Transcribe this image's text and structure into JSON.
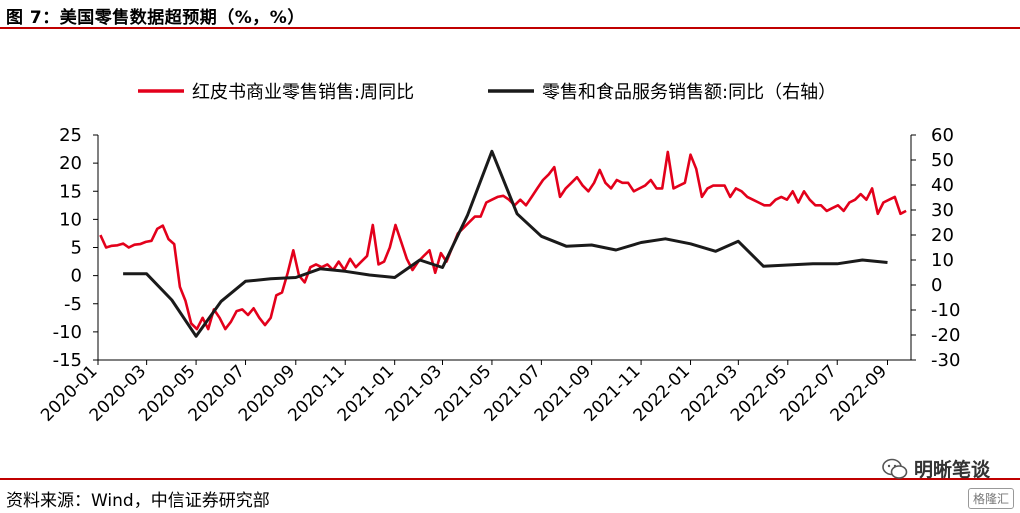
{
  "figure": {
    "title": "图 7：美国零售数据超预期（%，%）",
    "source": "资料来源：Wind，中信证券研究部",
    "watermark": "明晰笔谈",
    "watermark_small": "格隆汇",
    "accent_color": "#c00000"
  },
  "chart_data": {
    "type": "line",
    "legend_position": "top",
    "grid": false,
    "series": [
      {
        "name": "红皮书商业零售销售:周同比",
        "axis": "left",
        "color": "#e3001b",
        "points": [
          [
            "2020-01-04",
            7.2
          ],
          [
            "2020-01-11",
            5.0
          ],
          [
            "2020-01-18",
            5.3
          ],
          [
            "2020-01-25",
            5.4
          ],
          [
            "2020-02-01",
            5.7
          ],
          [
            "2020-02-08",
            5.0
          ],
          [
            "2020-02-15",
            5.5
          ],
          [
            "2020-02-22",
            5.6
          ],
          [
            "2020-02-29",
            6.0
          ],
          [
            "2020-03-07",
            6.2
          ],
          [
            "2020-03-14",
            8.3
          ],
          [
            "2020-03-21",
            8.9
          ],
          [
            "2020-03-28",
            6.5
          ],
          [
            "2020-04-04",
            5.6
          ],
          [
            "2020-04-11",
            -2.0
          ],
          [
            "2020-04-18",
            -4.5
          ],
          [
            "2020-04-25",
            -8.5
          ],
          [
            "2020-05-02",
            -9.5
          ],
          [
            "2020-05-09",
            -7.5
          ],
          [
            "2020-05-16",
            -9.5
          ],
          [
            "2020-05-23",
            -6.0
          ],
          [
            "2020-05-30",
            -7.5
          ],
          [
            "2020-06-06",
            -9.5
          ],
          [
            "2020-06-13",
            -8.2
          ],
          [
            "2020-06-20",
            -6.3
          ],
          [
            "2020-06-27",
            -6.0
          ],
          [
            "2020-07-04",
            -7.0
          ],
          [
            "2020-07-11",
            -5.8
          ],
          [
            "2020-07-18",
            -7.5
          ],
          [
            "2020-07-25",
            -8.8
          ],
          [
            "2020-08-01",
            -7.5
          ],
          [
            "2020-08-08",
            -3.5
          ],
          [
            "2020-08-15",
            -3.0
          ],
          [
            "2020-08-22",
            0.5
          ],
          [
            "2020-08-29",
            4.5
          ],
          [
            "2020-09-05",
            0.0
          ],
          [
            "2020-09-12",
            -1.2
          ],
          [
            "2020-09-19",
            1.5
          ],
          [
            "2020-09-26",
            2.0
          ],
          [
            "2020-10-03",
            1.5
          ],
          [
            "2020-10-10",
            2.0
          ],
          [
            "2020-10-17",
            1.0
          ],
          [
            "2020-10-24",
            2.5
          ],
          [
            "2020-10-31",
            1.0
          ],
          [
            "2020-11-07",
            3.0
          ],
          [
            "2020-11-14",
            1.5
          ],
          [
            "2020-11-21",
            2.5
          ],
          [
            "2020-11-28",
            3.5
          ],
          [
            "2020-12-05",
            9.0
          ],
          [
            "2020-12-12",
            2.0
          ],
          [
            "2020-12-19",
            2.5
          ],
          [
            "2020-12-26",
            5.0
          ],
          [
            "2021-01-02",
            9.0
          ],
          [
            "2021-01-09",
            6.0
          ],
          [
            "2021-01-16",
            3.0
          ],
          [
            "2021-01-23",
            1.0
          ],
          [
            "2021-01-30",
            2.5
          ],
          [
            "2021-02-06",
            3.5
          ],
          [
            "2021-02-13",
            4.5
          ],
          [
            "2021-02-20",
            0.5
          ],
          [
            "2021-02-27",
            4.0
          ],
          [
            "2021-03-06",
            2.5
          ],
          [
            "2021-03-13",
            5.0
          ],
          [
            "2021-03-20",
            7.5
          ],
          [
            "2021-03-27",
            8.5
          ],
          [
            "2021-04-03",
            9.5
          ],
          [
            "2021-04-10",
            10.5
          ],
          [
            "2021-04-17",
            10.5
          ],
          [
            "2021-04-24",
            13.0
          ],
          [
            "2021-05-01",
            13.5
          ],
          [
            "2021-05-08",
            14.0
          ],
          [
            "2021-05-15",
            14.2
          ],
          [
            "2021-05-22",
            13.5
          ],
          [
            "2021-05-29",
            12.5
          ],
          [
            "2021-06-05",
            13.5
          ],
          [
            "2021-06-12",
            12.5
          ],
          [
            "2021-06-19",
            14.0
          ],
          [
            "2021-06-26",
            15.5
          ],
          [
            "2021-07-03",
            17.0
          ],
          [
            "2021-07-10",
            18.0
          ],
          [
            "2021-07-17",
            19.3
          ],
          [
            "2021-07-24",
            14.0
          ],
          [
            "2021-07-31",
            15.5
          ],
          [
            "2021-08-07",
            16.5
          ],
          [
            "2021-08-14",
            17.5
          ],
          [
            "2021-08-21",
            16.0
          ],
          [
            "2021-08-28",
            15.0
          ],
          [
            "2021-09-04",
            16.5
          ],
          [
            "2021-09-11",
            18.8
          ],
          [
            "2021-09-18",
            16.5
          ],
          [
            "2021-09-25",
            15.5
          ],
          [
            "2021-10-02",
            17.0
          ],
          [
            "2021-10-09",
            16.5
          ],
          [
            "2021-10-16",
            16.5
          ],
          [
            "2021-10-23",
            15.0
          ],
          [
            "2021-10-30",
            15.5
          ],
          [
            "2021-11-06",
            16.0
          ],
          [
            "2021-11-13",
            17.0
          ],
          [
            "2021-11-20",
            15.5
          ],
          [
            "2021-11-27",
            15.5
          ],
          [
            "2021-12-04",
            22.0
          ],
          [
            "2021-12-11",
            15.5
          ],
          [
            "2021-12-18",
            16.0
          ],
          [
            "2021-12-25",
            16.5
          ],
          [
            "2022-01-01",
            21.5
          ],
          [
            "2022-01-08",
            19.0
          ],
          [
            "2022-01-15",
            14.0
          ],
          [
            "2022-01-22",
            15.5
          ],
          [
            "2022-01-29",
            16.0
          ],
          [
            "2022-02-05",
            16.0
          ],
          [
            "2022-02-12",
            16.0
          ],
          [
            "2022-02-19",
            14.0
          ],
          [
            "2022-02-26",
            15.5
          ],
          [
            "2022-03-05",
            15.0
          ],
          [
            "2022-03-12",
            14.0
          ],
          [
            "2022-03-19",
            13.5
          ],
          [
            "2022-03-26",
            13.0
          ],
          [
            "2022-04-02",
            12.5
          ],
          [
            "2022-04-09",
            12.5
          ],
          [
            "2022-04-16",
            13.5
          ],
          [
            "2022-04-23",
            14.0
          ],
          [
            "2022-04-30",
            13.5
          ],
          [
            "2022-05-07",
            15.0
          ],
          [
            "2022-05-14",
            13.0
          ],
          [
            "2022-05-21",
            15.0
          ],
          [
            "2022-05-28",
            13.5
          ],
          [
            "2022-06-04",
            12.5
          ],
          [
            "2022-06-11",
            12.5
          ],
          [
            "2022-06-18",
            11.5
          ],
          [
            "2022-06-25",
            12.0
          ],
          [
            "2022-07-02",
            12.5
          ],
          [
            "2022-07-09",
            11.5
          ],
          [
            "2022-07-16",
            13.0
          ],
          [
            "2022-07-23",
            13.5
          ],
          [
            "2022-07-30",
            14.5
          ],
          [
            "2022-08-06",
            13.5
          ],
          [
            "2022-08-13",
            15.5
          ],
          [
            "2022-08-20",
            11.0
          ],
          [
            "2022-08-27",
            13.0
          ],
          [
            "2022-09-03",
            13.5
          ],
          [
            "2022-09-10",
            14.0
          ],
          [
            "2022-09-17",
            11.0
          ],
          [
            "2022-09-24",
            11.5
          ]
        ]
      },
      {
        "name": "零售和食品服务销售额:同比（右轴）",
        "axis": "right",
        "color": "#1a1a1a",
        "points": [
          [
            "2020-02-01",
            4.5
          ],
          [
            "2020-03-01",
            4.5
          ],
          [
            "2020-04-01",
            -6.0
          ],
          [
            "2020-05-01",
            -20.5
          ],
          [
            "2020-06-01",
            -6.5
          ],
          [
            "2020-07-01",
            1.5
          ],
          [
            "2020-08-01",
            2.5
          ],
          [
            "2020-09-01",
            3.0
          ],
          [
            "2020-10-01",
            6.5
          ],
          [
            "2020-11-01",
            5.5
          ],
          [
            "2020-12-01",
            4.0
          ],
          [
            "2021-01-01",
            3.0
          ],
          [
            "2021-02-01",
            10.0
          ],
          [
            "2021-03-01",
            7.0
          ],
          [
            "2021-04-01",
            28.0
          ],
          [
            "2021-05-01",
            53.5
          ],
          [
            "2021-06-01",
            28.5
          ],
          [
            "2021-07-01",
            19.5
          ],
          [
            "2021-08-01",
            15.5
          ],
          [
            "2021-09-01",
            16.0
          ],
          [
            "2021-10-01",
            14.0
          ],
          [
            "2021-11-01",
            17.0
          ],
          [
            "2021-12-01",
            18.5
          ],
          [
            "2022-01-01",
            16.5
          ],
          [
            "2022-02-01",
            13.5
          ],
          [
            "2022-03-01",
            17.5
          ],
          [
            "2022-04-01",
            7.5
          ],
          [
            "2022-05-01",
            8.0
          ],
          [
            "2022-06-01",
            8.5
          ],
          [
            "2022-07-01",
            8.5
          ],
          [
            "2022-08-01",
            10.0
          ],
          [
            "2022-09-01",
            9.0
          ]
        ]
      }
    ],
    "x_ticks": [
      "2020-01",
      "2020-03",
      "2020-05",
      "2020-07",
      "2020-09",
      "2020-11",
      "2021-01",
      "2021-03",
      "2021-05",
      "2021-07",
      "2021-09",
      "2021-11",
      "2022-01",
      "2022-03",
      "2022-05",
      "2022-07",
      "2022-09"
    ],
    "xlim": [
      "2020-01-01",
      "2022-09-30"
    ],
    "y_left": {
      "ylim": [
        -15,
        25
      ],
      "ticks": [
        -15,
        -10,
        -5,
        0,
        5,
        10,
        15,
        20,
        25
      ]
    },
    "y_right": {
      "ylim": [
        -30,
        60
      ],
      "ticks": [
        -30,
        -20,
        -10,
        0,
        10,
        20,
        30,
        40,
        50,
        60
      ]
    }
  }
}
